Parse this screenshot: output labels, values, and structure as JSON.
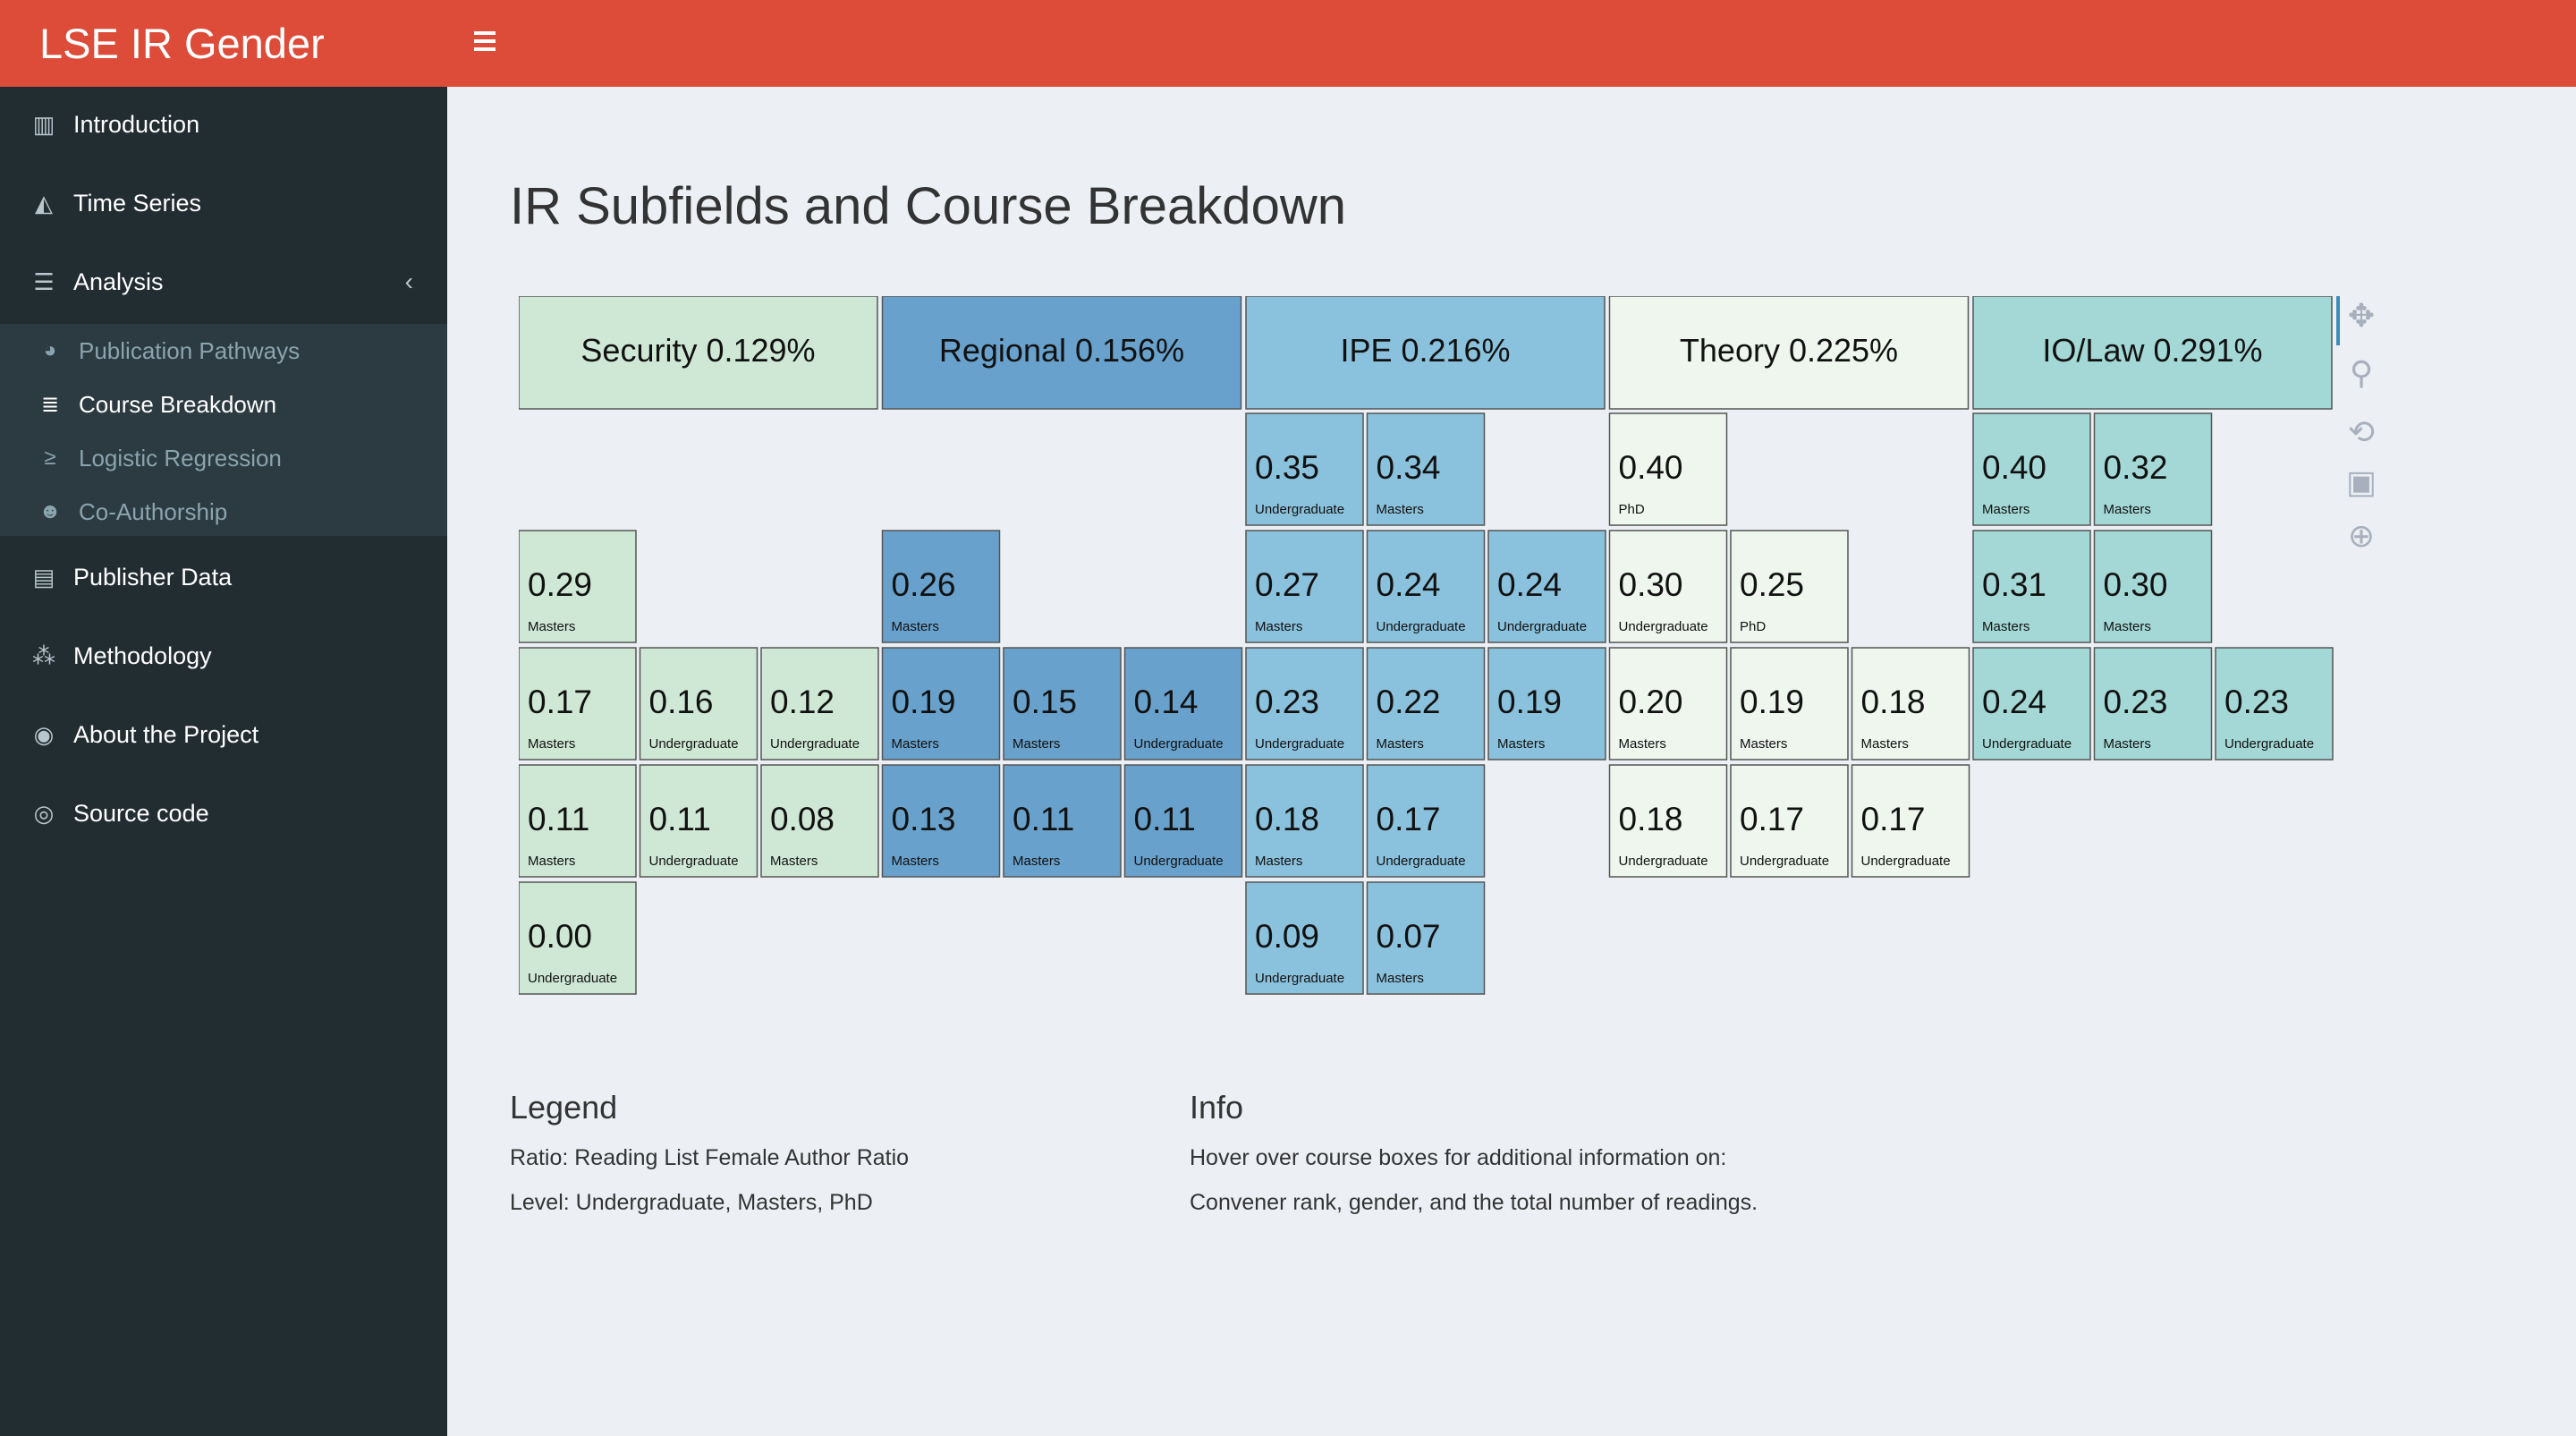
{
  "header": {
    "title": "LSE IR Gender Project",
    "menu_icon": "hamburger-icon"
  },
  "sidebar": {
    "items": [
      {
        "label": "Introduction",
        "icon": "bar-chart-icon"
      },
      {
        "label": "Time Series",
        "icon": "area-chart-icon"
      },
      {
        "label": "Analysis",
        "icon": "sliders-icon"
      },
      {
        "label": "Publisher Data",
        "icon": "book-icon"
      },
      {
        "label": "Methodology",
        "icon": "cubes-icon"
      },
      {
        "label": "About the Project",
        "icon": "user-circle-icon"
      },
      {
        "label": "Source code",
        "icon": "github-icon"
      }
    ],
    "analysis_sub": [
      {
        "label": "Publication Pathways",
        "icon": "pie-chart-icon"
      },
      {
        "label": "Course Breakdown",
        "icon": "list-icon",
        "active": true
      },
      {
        "label": "Logistic Regression",
        "icon": "terminal-icon"
      },
      {
        "label": "Co-Authorship",
        "icon": "users-icon"
      }
    ]
  },
  "page": {
    "title": "IR Subfields and Course Breakdown"
  },
  "chart_data": {
    "type": "treemap",
    "groups": [
      {
        "label": "Security 0.129%",
        "color": "#cfe8d5",
        "courses": [
          {
            "row": 1,
            "col": 0,
            "ratio": "0.29",
            "level": "Masters"
          },
          {
            "row": 2,
            "col": 0,
            "ratio": "0.17",
            "level": "Masters"
          },
          {
            "row": 2,
            "col": 1,
            "ratio": "0.16",
            "level": "Undergraduate"
          },
          {
            "row": 2,
            "col": 2,
            "ratio": "0.12",
            "level": "Undergraduate"
          },
          {
            "row": 3,
            "col": 0,
            "ratio": "0.11",
            "level": "Masters"
          },
          {
            "row": 3,
            "col": 1,
            "ratio": "0.11",
            "level": "Undergraduate"
          },
          {
            "row": 3,
            "col": 2,
            "ratio": "0.08",
            "level": "Masters"
          },
          {
            "row": 4,
            "col": 0,
            "ratio": "0.00",
            "level": "Undergraduate"
          }
        ]
      },
      {
        "label": "Regional 0.156%",
        "color": "#68a1cb",
        "courses": [
          {
            "row": 1,
            "col": 0,
            "ratio": "0.26",
            "level": "Masters"
          },
          {
            "row": 2,
            "col": 0,
            "ratio": "0.19",
            "level": "Masters"
          },
          {
            "row": 2,
            "col": 1,
            "ratio": "0.15",
            "level": "Masters"
          },
          {
            "row": 2,
            "col": 2,
            "ratio": "0.14",
            "level": "Undergraduate"
          },
          {
            "row": 3,
            "col": 0,
            "ratio": "0.13",
            "level": "Masters"
          },
          {
            "row": 3,
            "col": 1,
            "ratio": "0.11",
            "level": "Masters"
          },
          {
            "row": 3,
            "col": 2,
            "ratio": "0.11",
            "level": "Undergraduate"
          }
        ]
      },
      {
        "label": "IPE 0.216%",
        "color": "#8ac1dc",
        "courses": [
          {
            "row": 0,
            "col": 0,
            "ratio": "0.35",
            "level": "Undergraduate"
          },
          {
            "row": 0,
            "col": 1,
            "ratio": "0.34",
            "level": "Masters"
          },
          {
            "row": 1,
            "col": 0,
            "ratio": "0.27",
            "level": "Masters"
          },
          {
            "row": 1,
            "col": 1,
            "ratio": "0.24",
            "level": "Undergraduate"
          },
          {
            "row": 1,
            "col": 2,
            "ratio": "0.24",
            "level": "Undergraduate"
          },
          {
            "row": 2,
            "col": 0,
            "ratio": "0.23",
            "level": "Undergraduate"
          },
          {
            "row": 2,
            "col": 1,
            "ratio": "0.22",
            "level": "Masters"
          },
          {
            "row": 2,
            "col": 2,
            "ratio": "0.19",
            "level": "Masters"
          },
          {
            "row": 3,
            "col": 0,
            "ratio": "0.18",
            "level": "Masters"
          },
          {
            "row": 3,
            "col": 1,
            "ratio": "0.17",
            "level": "Undergraduate"
          },
          {
            "row": 4,
            "col": 0,
            "ratio": "0.09",
            "level": "Undergraduate"
          },
          {
            "row": 4,
            "col": 1,
            "ratio": "0.07",
            "level": "Masters"
          }
        ]
      },
      {
        "label": "Theory 0.225%",
        "color": "#eef6ee",
        "courses": [
          {
            "row": 0,
            "col": 0,
            "ratio": "0.40",
            "level": "PhD"
          },
          {
            "row": 1,
            "col": 0,
            "ratio": "0.30",
            "level": "Undergraduate"
          },
          {
            "row": 1,
            "col": 1,
            "ratio": "0.25",
            "level": "PhD"
          },
          {
            "row": 2,
            "col": 0,
            "ratio": "0.20",
            "level": "Masters"
          },
          {
            "row": 2,
            "col": 1,
            "ratio": "0.19",
            "level": "Masters"
          },
          {
            "row": 2,
            "col": 2,
            "ratio": "0.18",
            "level": "Masters"
          },
          {
            "row": 3,
            "col": 0,
            "ratio": "0.18",
            "level": "Undergraduate"
          },
          {
            "row": 3,
            "col": 1,
            "ratio": "0.17",
            "level": "Undergraduate"
          },
          {
            "row": 3,
            "col": 2,
            "ratio": "0.17",
            "level": "Undergraduate"
          }
        ]
      },
      {
        "label": "IO/Law 0.291%",
        "color": "#a3d8d6",
        "courses": [
          {
            "row": 0,
            "col": 0,
            "ratio": "0.40",
            "level": "Masters"
          },
          {
            "row": 0,
            "col": 1,
            "ratio": "0.32",
            "level": "Masters"
          },
          {
            "row": 1,
            "col": 0,
            "ratio": "0.31",
            "level": "Masters"
          },
          {
            "row": 1,
            "col": 1,
            "ratio": "0.30",
            "level": "Masters"
          },
          {
            "row": 2,
            "col": 0,
            "ratio": "0.24",
            "level": "Undergraduate"
          },
          {
            "row": 2,
            "col": 1,
            "ratio": "0.23",
            "level": "Masters"
          },
          {
            "row": 2,
            "col": 2,
            "ratio": "0.23",
            "level": "Undergraduate"
          }
        ]
      }
    ]
  },
  "modebar": [
    "move-icon",
    "zoom-icon",
    "reset-icon",
    "save-icon",
    "select-icon"
  ],
  "legend": {
    "heading": "Legend",
    "line1": "Ratio: Reading List Female Author Ratio",
    "line2": "Level: Undergraduate, Masters, PhD"
  },
  "info": {
    "heading": "Info",
    "line1": "Hover over course boxes for additional information on:",
    "line2": "Convener rank, gender, and the total number of readings."
  }
}
